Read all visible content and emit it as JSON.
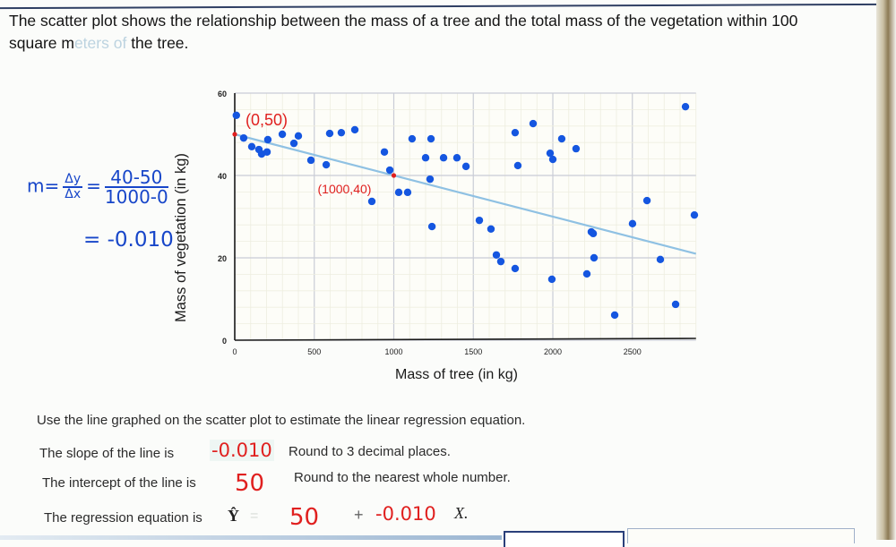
{
  "problem": {
    "intro_line1": "The scatter plot shows the relationship between the mass of a tree and the total mass of the vegetation within 100",
    "intro_line2_start": "square m",
    "intro_line2_faded": "eters of",
    "intro_line2_end": " the tree."
  },
  "chart_data": {
    "type": "scatter",
    "title": "",
    "xlabel": "Mass of tree (in kg)",
    "ylabel": "Mass of vegetation (in kg)",
    "xlim": [
      0,
      2900
    ],
    "ylim": [
      0,
      60
    ],
    "x_ticks": [
      0,
      500,
      1000,
      1500,
      2000,
      2500
    ],
    "y_ticks": [
      0,
      20,
      40,
      60
    ],
    "grid": true,
    "legend": null,
    "series": [
      {
        "name": "observations",
        "color": "#1556e0",
        "points": [
          [
            10,
            54.6
          ],
          [
            56,
            49.1
          ],
          [
            107,
            47.0
          ],
          [
            152,
            46.3
          ],
          [
            169,
            45.2
          ],
          [
            203,
            45.7
          ],
          [
            208,
            48.7
          ],
          [
            299,
            50.0
          ],
          [
            372,
            47.8
          ],
          [
            400,
            49.6
          ],
          [
            479,
            43.7
          ],
          [
            575,
            42.6
          ],
          [
            597,
            50.2
          ],
          [
            670,
            50.4
          ],
          [
            755,
            51.1
          ],
          [
            862,
            33.7
          ],
          [
            941,
            45.7
          ],
          [
            975,
            41.3
          ],
          [
            1031,
            35.9
          ],
          [
            1087,
            35.9
          ],
          [
            1115,
            48.9
          ],
          [
            1234,
            48.9
          ],
          [
            1200,
            44.3
          ],
          [
            1313,
            44.3
          ],
          [
            1397,
            44.3
          ],
          [
            1454,
            42.2
          ],
          [
            1228,
            39.1
          ],
          [
            1240,
            27.6
          ],
          [
            1538,
            29.1
          ],
          [
            1611,
            27.0
          ],
          [
            1645,
            20.7
          ],
          [
            1673,
            19.1
          ],
          [
            1763,
            17.4
          ],
          [
            1994,
            14.8
          ],
          [
            1780,
            42.4
          ],
          [
            1763,
            50.4
          ],
          [
            1876,
            52.6
          ],
          [
            1983,
            45.4
          ],
          [
            2000,
            43.9
          ],
          [
            2056,
            48.9
          ],
          [
            2146,
            46.5
          ],
          [
            2214,
            16.1
          ],
          [
            2242,
            26.3
          ],
          [
            2254,
            25.9
          ],
          [
            2259,
            20.0
          ],
          [
            2389,
            6.1
          ],
          [
            2501,
            28.3
          ],
          [
            2592,
            33.9
          ],
          [
            2676,
            19.6
          ],
          [
            2772,
            8.7
          ],
          [
            2834,
            56.7
          ],
          [
            2890,
            30.4
          ]
        ]
      }
    ],
    "trend_line": {
      "color": "#8fc1e3",
      "from": [
        0,
        50
      ],
      "to": [
        2900,
        21
      ],
      "slope": -0.01,
      "intercept": 50
    },
    "annotations": [
      {
        "text": "(0,50)",
        "at": [
          0,
          50
        ],
        "color": "#e0201f"
      },
      {
        "text": "(1000,40)",
        "at": [
          1000,
          40
        ],
        "color": "#e0201f"
      }
    ]
  },
  "handwriting": {
    "slope_m": "m=",
    "dy": "Δy",
    "dx": "Δx",
    "eq": "=",
    "numerator": "40-50",
    "denominator": "1000-0",
    "result": "= -0.010"
  },
  "questions": {
    "intro": "Use the line graphed on the scatter plot to estimate the linear regression equation.",
    "slope_label": "The slope of the line is",
    "slope_answer": "-0.010",
    "slope_hint": "Round to 3 decimal places.",
    "intercept_label": "The intercept of the line is",
    "intercept_answer": "50",
    "intercept_hint": "Round to the nearest whole number.",
    "equation_label": "The regression equation is",
    "yhat": "Ŷ",
    "equals": "=",
    "equation_intercept": "50",
    "plus": "+",
    "equation_slope": "-0.010",
    "x_var": "X."
  }
}
